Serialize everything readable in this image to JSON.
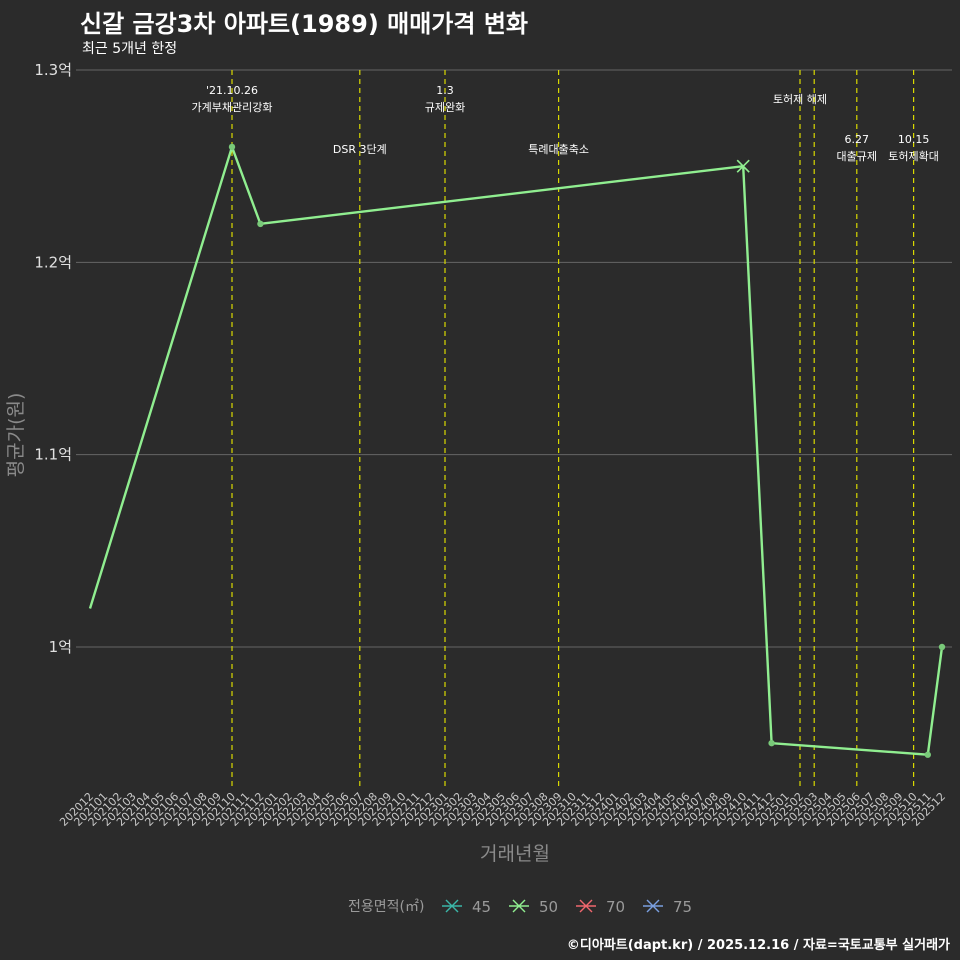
{
  "chart_data": {
    "type": "line",
    "title": "신갈 금강3차 아파트(1989) 매매가격 변화",
    "subtitle": "최근 5개년 한정",
    "xlabel": "거래년월",
    "ylabel": "평균가(원)",
    "ylim": [
      92000000,
      130000000
    ],
    "yticks": [
      {
        "value": 100000000,
        "label": "1억"
      },
      {
        "value": 110000000,
        "label": "1.1억"
      },
      {
        "value": 120000000,
        "label": "1.2억"
      },
      {
        "value": 130000000,
        "label": "1.3억"
      }
    ],
    "categories": [
      "202012",
      "202101",
      "202102",
      "202103",
      "202104",
      "202105",
      "202106",
      "202107",
      "202108",
      "202109",
      "202110",
      "202111",
      "202112",
      "202201",
      "202202",
      "202203",
      "202204",
      "202205",
      "202206",
      "202207",
      "202208",
      "202209",
      "202210",
      "202211",
      "202212",
      "202301",
      "202302",
      "202303",
      "202304",
      "202305",
      "202306",
      "202307",
      "202308",
      "202309",
      "202310",
      "202311",
      "202312",
      "202401",
      "202402",
      "202403",
      "202404",
      "202405",
      "202406",
      "202407",
      "202408",
      "202409",
      "202410",
      "202411",
      "202412",
      "202501",
      "202502",
      "202503",
      "202504",
      "202505",
      "202506",
      "202507",
      "202508",
      "202509",
      "202510",
      "202511",
      "202512"
    ],
    "series": [
      {
        "name": "50",
        "color": "#90ee90",
        "points": [
          {
            "x": "202012",
            "y": 102000000,
            "marker": "none"
          },
          {
            "x": "202110",
            "y": 126000000,
            "marker": "dot"
          },
          {
            "x": "202112",
            "y": 122000000,
            "marker": "dot"
          },
          {
            "x": "202410",
            "y": 125000000,
            "marker": "cross"
          },
          {
            "x": "202412",
            "y": 95000000,
            "marker": "dot"
          },
          {
            "x": "202511",
            "y": 94400000,
            "marker": "dot"
          },
          {
            "x": "202512",
            "y": 100000000,
            "marker": "dot"
          }
        ]
      }
    ],
    "events": [
      {
        "x": "202110",
        "lines": [
          "'21.10.26",
          "가계부채관리강화"
        ],
        "row": 1
      },
      {
        "x": "202207",
        "lines": [
          "DSR 3단계"
        ],
        "row": 3
      },
      {
        "x": "202301",
        "lines": [
          "1.3",
          "규제완화"
        ],
        "row": 1
      },
      {
        "x": "202309",
        "lines": [
          "특례대출축소"
        ],
        "row": 3
      },
      {
        "x": "202502",
        "lines": [
          "토허제 해제"
        ],
        "row": 2
      },
      {
        "x": "202503",
        "lines": [],
        "row": 0
      },
      {
        "x": "202506",
        "lines": [
          "6.27",
          "대출규제"
        ],
        "row": 4
      },
      {
        "x": "202510",
        "lines": [
          "10.15",
          "토허제확대"
        ],
        "row": 4
      }
    ],
    "legend": {
      "title": "전용면적(㎡)",
      "position": "bottom",
      "items": [
        {
          "label": "45",
          "color": "#3bb6a8"
        },
        {
          "label": "50",
          "color": "#90ee90"
        },
        {
          "label": "70",
          "color": "#f0676e"
        },
        {
          "label": "75",
          "color": "#7a9fe0"
        }
      ]
    },
    "grid": true
  },
  "caption": "©디아파트(dapt.kr) / 2025.12.16 / 자료=국토교통부 실거래가"
}
